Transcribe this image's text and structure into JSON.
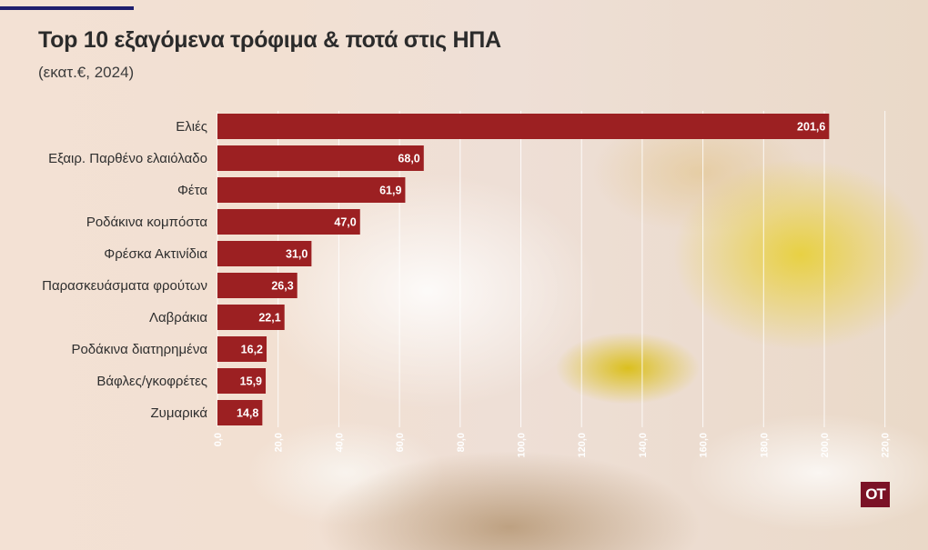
{
  "header": {
    "title": "Top 10 εξαγόμενα τρόφιμα & ποτά στις ΗΠΑ",
    "subtitle": "(εκατ.€, 2024)"
  },
  "logo": {
    "text": "OT",
    "color": "#7b1226"
  },
  "colors": {
    "bar": "#9c2022",
    "bar_label": "#ffffff",
    "accent_line": "#1e1e6e"
  },
  "chart_data": {
    "type": "bar",
    "orientation": "horizontal",
    "categories": [
      "Ελιές",
      "Εξαιρ. Παρθένο ελαιόλαδο",
      "Φέτα",
      "Ροδάκινα κομπόστα",
      "Φρέσκα Ακτινίδια",
      "Παρασκευάσματα φρούτων",
      "Λαβράκια",
      "Ροδάκινα διατηρημένα",
      "Βάφλες/γκοφρέτες",
      "Ζυμαρικά"
    ],
    "values": [
      201.6,
      68.0,
      61.9,
      47.0,
      31.0,
      26.3,
      22.1,
      16.2,
      15.9,
      14.8
    ],
    "value_labels": [
      "201,6",
      "68,0",
      "61,9",
      "47,0",
      "31,0",
      "26,3",
      "22,1",
      "16,2",
      "15,9",
      "14,8"
    ],
    "xlim": [
      0,
      220
    ],
    "ticks": [
      0,
      20,
      40,
      60,
      80,
      100,
      120,
      140,
      160,
      180,
      200,
      220
    ],
    "tick_labels": [
      "0,0",
      "20,0",
      "40,0",
      "60,0",
      "80,0",
      "100,0",
      "120,0",
      "140,0",
      "160,0",
      "180,0",
      "200,0",
      "220,0"
    ],
    "grid": true,
    "xlabel": "",
    "ylabel": ""
  }
}
